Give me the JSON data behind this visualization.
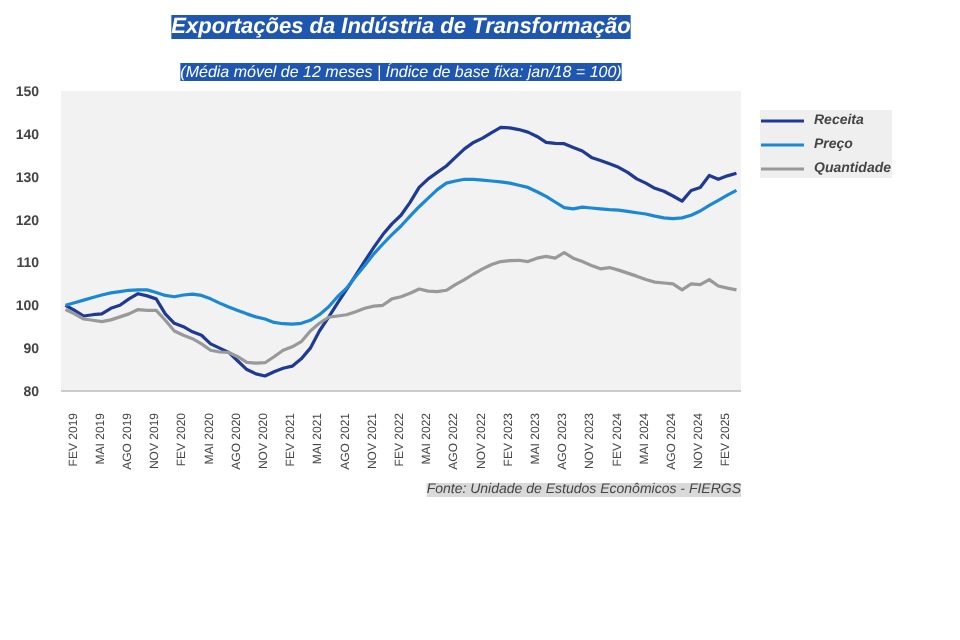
{
  "chart_data": {
    "type": "line",
    "title": "Exportações da Indústria de Transformação",
    "subtitle": "(Média móvel de 12 meses | Índice de base fixa: jan/18 = 100)",
    "annotations": [
      "Fonte: Unidade de Estudos Econômicos - FIERGS"
    ],
    "categories": [
      null,
      "FEV 2019",
      null,
      null,
      "MAI 2019",
      null,
      null,
      "AGO 2019",
      null,
      null,
      "NOV 2019",
      null,
      null,
      "FEV 2020",
      null,
      null,
      "MAI 2020",
      null,
      null,
      "AGO 2020",
      null,
      null,
      "NOV 2020",
      null,
      null,
      "FEV 2021",
      null,
      null,
      "MAI 2021",
      null,
      null,
      "AGO 2021",
      null,
      null,
      "NOV 2021",
      null,
      null,
      "FEV 2022",
      null,
      null,
      "MAI 2022",
      null,
      null,
      "AGO 2022",
      null,
      null,
      "NOV 2022",
      null,
      null,
      "FEV 2023",
      null,
      null,
      "MAI 2023",
      null,
      null,
      "AGO 2023",
      null,
      null,
      "NOV 2023",
      null,
      null,
      "FEV 2024",
      null,
      null,
      "MAI 2024",
      null,
      null,
      "AGO 2024",
      null,
      null,
      "NOV 2024",
      null,
      null,
      "FEV 2025",
      null
    ],
    "ylim": [
      80,
      150
    ],
    "yticks": [
      80,
      90,
      100,
      110,
      120,
      130,
      140,
      150
    ],
    "legend": "top right",
    "line_style": "solid",
    "series": [
      {
        "name": "Receita",
        "color": "#1f3a93",
        "values": [
          100,
          98.8,
          97.5,
          97.8,
          98,
          99.3,
          100,
          101.5,
          102.7,
          102.2,
          101.5,
          98,
          95.8,
          95,
          93.8,
          93,
          91,
          90,
          89,
          87,
          85,
          84,
          83.5,
          84.5,
          85.3,
          85.8,
          87.5,
          90,
          94,
          97.2,
          100.5,
          103.7,
          107,
          110.3,
          113.5,
          116.5,
          119,
          121,
          124,
          127.5,
          129.5,
          131,
          132.5,
          134.5,
          136.5,
          138,
          139,
          140.3,
          141.5,
          141.4,
          141,
          140.4,
          139.4,
          138,
          137.8,
          137.7,
          136.8,
          136,
          134.5,
          133.8,
          133,
          132.2,
          131,
          129.5,
          128.5,
          127.3,
          126.6,
          125.5,
          124.3,
          126.8,
          127.5,
          130.3,
          129.4,
          130.2,
          130.8
        ]
      },
      {
        "name": "Preço",
        "color": "#1b88d6",
        "values": [
          100,
          100.6,
          101.2,
          101.8,
          102.4,
          102.9,
          103.2,
          103.5,
          103.6,
          103.6,
          103,
          102.3,
          102,
          102.4,
          102.6,
          102.3,
          101.5,
          100.5,
          99.6,
          98.8,
          98,
          97.3,
          96.8,
          96,
          95.7,
          95.6,
          95.8,
          96.5,
          97.8,
          99.6,
          102,
          104,
          106.7,
          109.3,
          112,
          114.3,
          116.5,
          118.5,
          120.8,
          123,
          125,
          127,
          128.5,
          129,
          129.4,
          129.4,
          129.2,
          129,
          128.8,
          128.5,
          128,
          127.5,
          126.5,
          125.4,
          124.1,
          122.8,
          122.5,
          122.9,
          122.7,
          122.5,
          122.3,
          122.2,
          121.9,
          121.6,
          121.3,
          120.8,
          120.4,
          120.2,
          120.4,
          121,
          122,
          123.3,
          124.5,
          125.7,
          126.8
        ]
      },
      {
        "name": "Quantidade",
        "color": "#999999",
        "values": [
          99,
          98,
          96.8,
          96.5,
          96.2,
          96.6,
          97.3,
          98,
          99,
          98.8,
          98.8,
          96.5,
          94,
          93,
          92.2,
          91,
          89.5,
          89.1,
          89,
          88,
          86.7,
          86.5,
          86.6,
          88,
          89.5,
          90.3,
          91.5,
          94,
          95.8,
          97.2,
          97.5,
          97.8,
          98.5,
          99.3,
          99.8,
          100,
          101.5,
          102,
          102.8,
          103.8,
          103.3,
          103.2,
          103.5,
          104.8,
          106,
          107.3,
          108.5,
          109.5,
          110.2,
          110.4,
          110.5,
          110.2,
          111,
          111.4,
          111,
          112.3,
          111,
          110.2,
          109.3,
          108.5,
          108.8,
          108.2,
          107.5,
          106.8,
          106,
          105.4,
          105.2,
          105,
          103.6,
          105,
          104.8,
          106,
          104.5,
          104,
          103.6
        ]
      }
    ]
  }
}
